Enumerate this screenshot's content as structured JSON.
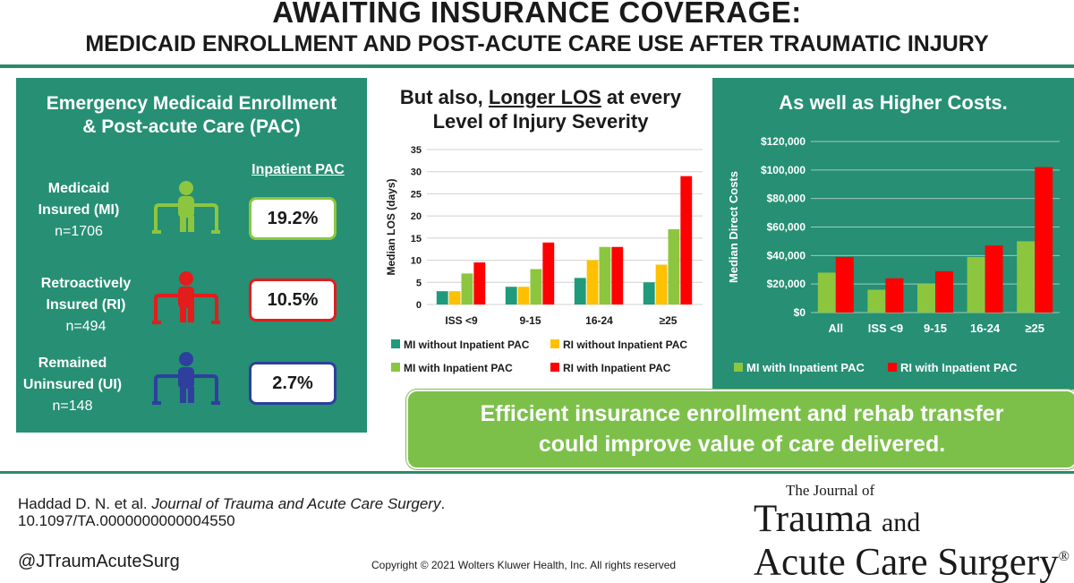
{
  "header": {
    "title": "AWAITING INSURANCE COVERAGE:",
    "subtitle": "MEDICAID ENROLLMENT AND POST-ACUTE CARE USE AFTER TRAUMATIC INJURY"
  },
  "left_panel": {
    "title_line1": "Emergency Medicaid Enrollment",
    "title_line2": "& Post-acute Care (PAC)",
    "column_header": "Inpatient PAC",
    "groups": [
      {
        "name_line1": "Medicaid",
        "name_line2": "Insured (MI)",
        "n": "n=1706",
        "pct": "19.2%",
        "color": "#8cc63f",
        "icon": "person-walker-icon"
      },
      {
        "name_line1": "Retroactively",
        "name_line2": "Insured (RI)",
        "n": "n=494",
        "pct": "10.5%",
        "color": "#e31c1c",
        "icon": "person-walker-icon"
      },
      {
        "name_line1": "Remained",
        "name_line2": "Uninsured (UI)",
        "n": "n=148",
        "pct": "2.7%",
        "color": "#2e3f9e",
        "icon": "person-walker-icon"
      }
    ]
  },
  "middle_panel": {
    "title_line1_pre": "But also, ",
    "title_line1_emph": "Longer LOS",
    "title_line1_post": " at every",
    "title_line2": "Level of Injury Severity"
  },
  "right_panel": {
    "title": "As well as Higher Costs."
  },
  "callout": {
    "line1": "Efficient insurance enrollment and rehab transfer",
    "line2": "could improve value of care delivered."
  },
  "footer": {
    "citation_authors": "Haddad D. N. et al. ",
    "citation_journal": "Journal of Trauma and Acute Care Surgery",
    "citation_period": ".",
    "doi": "10.1097/TA.0000000000004550",
    "handle": "@JTraumAcuteSurg",
    "copyright": "Copyright © 2021  Wolters Kluwer Health, Inc. All rights reserved",
    "journal_small": "The Journal of",
    "journal_line1_a": "Trauma",
    "journal_line1_b": "and",
    "journal_line2": "Acute Care Surgery",
    "registered": "®"
  },
  "colors": {
    "panel_green": "#268f74",
    "mi_without": "#1f9a7a",
    "ri_without": "#ffc000",
    "mi_with": "#8cc63f",
    "ri_with": "#ff0000",
    "callout_green": "#7cc04a"
  },
  "chart_data": [
    {
      "type": "bar",
      "categories": [
        "ISS <9",
        "9-15",
        "16-24",
        "≥25"
      ],
      "ylabel": "Median LOS (days)",
      "ylim": [
        0,
        35
      ],
      "yticks": [
        0,
        5,
        10,
        15,
        20,
        25,
        30,
        35
      ],
      "grid": true,
      "legend_placement": "bottom",
      "series": [
        {
          "name": "MI without Inpatient PAC",
          "color": "#1f9a7a",
          "values": [
            3,
            4,
            6,
            5
          ]
        },
        {
          "name": "RI without Inpatient PAC",
          "color": "#ffc000",
          "values": [
            3,
            4,
            10,
            9
          ]
        },
        {
          "name": "MI with Inpatient PAC",
          "color": "#8cc63f",
          "values": [
            7,
            8,
            13,
            17
          ]
        },
        {
          "name": "RI with Inpatient PAC",
          "color": "#ff0000",
          "values": [
            9.5,
            14,
            13,
            29
          ]
        }
      ]
    },
    {
      "type": "bar",
      "categories": [
        "All",
        "ISS <9",
        "9-15",
        "16-24",
        "≥25"
      ],
      "ylabel": "Median Direct Costs",
      "ylim": [
        0,
        120000
      ],
      "yticks": [
        "$0",
        "$20,000",
        "$40,000",
        "$60,000",
        "$80,000",
        "$100,000",
        "$120,000"
      ],
      "grid": true,
      "legend_placement": "bottom",
      "series": [
        {
          "name": "MI with Inpatient PAC",
          "color": "#8cc63f",
          "values": [
            28000,
            16000,
            20000,
            39000,
            50000
          ]
        },
        {
          "name": "RI with Inpatient PAC",
          "color": "#ff0000",
          "values": [
            39000,
            24000,
            29000,
            47000,
            102000
          ]
        }
      ]
    }
  ]
}
